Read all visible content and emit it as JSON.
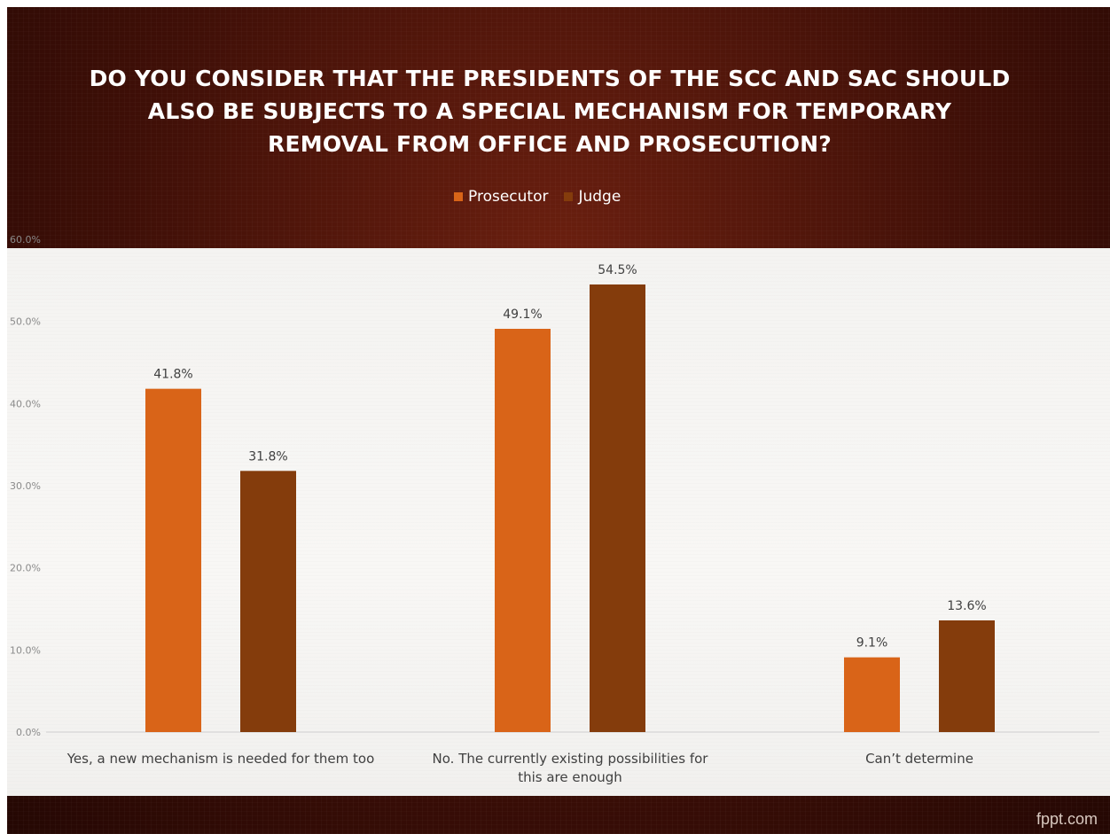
{
  "branding": {
    "watermark": "fppt.com"
  },
  "chart_data": {
    "type": "bar",
    "title": "DO YOU CONSIDER THAT THE PRESIDENTS OF THE SCC AND SAC SHOULD ALSO BE SUBJECTS TO A SPECIAL MECHANISM FOR TEMPORARY REMOVAL FROM OFFICE AND PROSECUTION?",
    "xlabel": "",
    "ylabel": "",
    "ylim": [
      0,
      60
    ],
    "yticks": [
      "0.0%",
      "10.0%",
      "20.0%",
      "30.0%",
      "40.0%",
      "50.0%",
      "60.0%"
    ],
    "grid": false,
    "legend_position": "top",
    "categories": [
      "Yes, a new mechanism is needed for them too",
      "No. The currently existing possibilities for this are enough",
      "Can’t determine"
    ],
    "series": [
      {
        "name": "Prosecutor",
        "color": "#d96418",
        "values": [
          41.8,
          49.1,
          9.1
        ],
        "labels": [
          "41.8%",
          "49.1%",
          "9.1%"
        ]
      },
      {
        "name": "Judge",
        "color": "#843c0c",
        "values": [
          31.8,
          54.5,
          13.6
        ],
        "labels": [
          "31.8%",
          "54.5%",
          "13.6%"
        ]
      }
    ]
  }
}
